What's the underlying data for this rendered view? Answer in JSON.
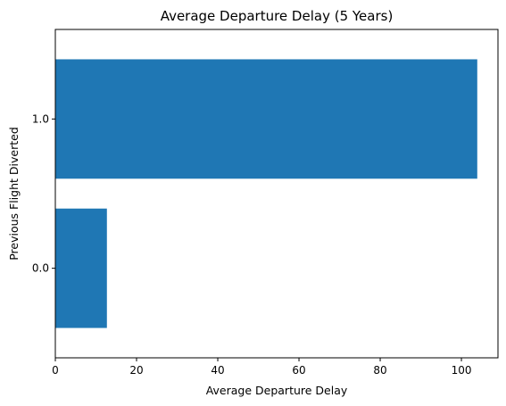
{
  "chart_data": {
    "type": "bar",
    "orientation": "horizontal",
    "title": "Average Departure Delay (5 Years)",
    "xlabel": "Average Departure Delay",
    "ylabel": "Previous Flight Diverted",
    "categories": [
      "0.0",
      "1.0"
    ],
    "values": [
      12.7,
      103.9
    ],
    "xlim": [
      0,
      109
    ],
    "xticks": [
      0,
      20,
      40,
      60,
      80,
      100
    ],
    "xtick_labels": [
      "0",
      "20",
      "40",
      "60",
      "80",
      "100"
    ],
    "bar_color": "#1f77b4",
    "grid": false,
    "legend": "none"
  }
}
